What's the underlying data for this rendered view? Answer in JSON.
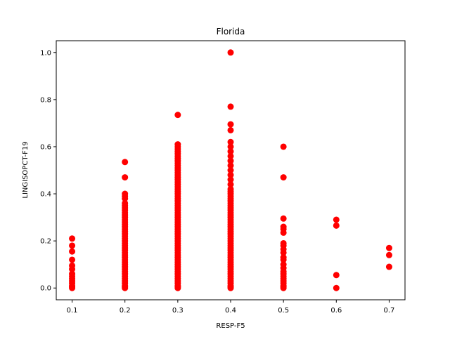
{
  "chart_data": {
    "type": "scatter",
    "title": "Florida",
    "xlabel": "RESP-F5",
    "ylabel": "LINGISOPCT-F19",
    "xlim": [
      0.07,
      0.73
    ],
    "ylim": [
      -0.05,
      1.05
    ],
    "x_ticks": [
      "0.1",
      "0.2",
      "0.3",
      "0.4",
      "0.5",
      "0.6",
      "0.7"
    ],
    "y_ticks": [
      "0.0",
      "0.2",
      "0.4",
      "0.6",
      "0.8",
      "1.0"
    ],
    "marker_color": "#ff0000",
    "grid": false,
    "points": [
      {
        "x": 0.1,
        "y": [
          0.0,
          0.005,
          0.01,
          0.02,
          0.03,
          0.04,
          0.05,
          0.06,
          0.08,
          0.095,
          0.12,
          0.155,
          0.18,
          0.21
        ]
      },
      {
        "x": 0.2,
        "y": [
          0.0,
          0.005,
          0.01,
          0.02,
          0.03,
          0.04,
          0.05,
          0.06,
          0.07,
          0.08,
          0.09,
          0.1,
          0.11,
          0.12,
          0.13,
          0.14,
          0.15,
          0.16,
          0.17,
          0.18,
          0.19,
          0.2,
          0.21,
          0.22,
          0.23,
          0.24,
          0.25,
          0.26,
          0.27,
          0.28,
          0.29,
          0.3,
          0.31,
          0.32,
          0.33,
          0.34,
          0.35,
          0.36,
          0.38,
          0.39,
          0.4,
          0.47,
          0.535
        ]
      },
      {
        "x": 0.3,
        "y": [
          0.0,
          0.005,
          0.01,
          0.02,
          0.03,
          0.04,
          0.05,
          0.06,
          0.07,
          0.08,
          0.09,
          0.1,
          0.11,
          0.12,
          0.13,
          0.14,
          0.15,
          0.16,
          0.17,
          0.18,
          0.19,
          0.2,
          0.21,
          0.22,
          0.23,
          0.24,
          0.25,
          0.26,
          0.27,
          0.28,
          0.29,
          0.3,
          0.31,
          0.32,
          0.33,
          0.34,
          0.35,
          0.36,
          0.37,
          0.38,
          0.39,
          0.4,
          0.41,
          0.42,
          0.43,
          0.44,
          0.45,
          0.46,
          0.47,
          0.48,
          0.49,
          0.5,
          0.51,
          0.52,
          0.53,
          0.54,
          0.55,
          0.56,
          0.57,
          0.58,
          0.59,
          0.6,
          0.61,
          0.735
        ]
      },
      {
        "x": 0.4,
        "y": [
          0.0,
          0.005,
          0.01,
          0.02,
          0.03,
          0.04,
          0.05,
          0.06,
          0.07,
          0.08,
          0.09,
          0.1,
          0.11,
          0.12,
          0.13,
          0.14,
          0.15,
          0.16,
          0.17,
          0.18,
          0.19,
          0.2,
          0.21,
          0.22,
          0.23,
          0.24,
          0.25,
          0.26,
          0.27,
          0.28,
          0.29,
          0.3,
          0.31,
          0.32,
          0.33,
          0.34,
          0.35,
          0.36,
          0.37,
          0.38,
          0.39,
          0.4,
          0.41,
          0.42,
          0.44,
          0.46,
          0.48,
          0.5,
          0.52,
          0.54,
          0.56,
          0.58,
          0.6,
          0.62,
          0.67,
          0.695,
          0.77,
          1.0
        ]
      },
      {
        "x": 0.5,
        "y": [
          0.0,
          0.005,
          0.01,
          0.02,
          0.03,
          0.04,
          0.05,
          0.06,
          0.07,
          0.085,
          0.1,
          0.12,
          0.13,
          0.15,
          0.165,
          0.18,
          0.19,
          0.235,
          0.25,
          0.26,
          0.295,
          0.47,
          0.6
        ]
      },
      {
        "x": 0.6,
        "y": [
          0.0,
          0.055,
          0.265,
          0.29
        ]
      },
      {
        "x": 0.7,
        "y": [
          0.09,
          0.14,
          0.17
        ]
      }
    ]
  }
}
